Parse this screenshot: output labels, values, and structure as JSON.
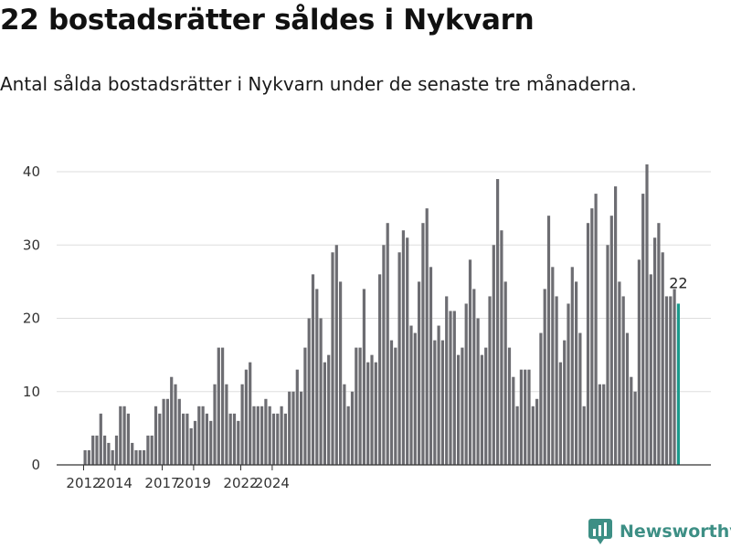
{
  "title": "22 bostadsrätter såldes i Nykvarn",
  "subtitle": "Antal sålda bostadsrätter i Nykvarn under de senaste tre månaderna.",
  "brand": {
    "name": "Newsworthy",
    "color": "#3d8f85",
    "icon": "newsworthy-logo-icon"
  },
  "colors": {
    "bar": "#6d6d72",
    "highlight": "#1a9a8c",
    "grid": "#dddddd",
    "axis": "#333333"
  },
  "chart_data": {
    "type": "bar",
    "title": "22 bostadsrätter såldes i Nykvarn",
    "xlabel": "",
    "ylabel": "",
    "ylim": [
      0,
      41
    ],
    "yticks": [
      0,
      10,
      20,
      30,
      40
    ],
    "x_start": 2012,
    "x_step": 0.25,
    "xticks": [
      {
        "label": "2012",
        "value": 2012
      },
      {
        "label": "2014",
        "value": 2014
      },
      {
        "label": "2017",
        "value": 2017
      },
      {
        "label": "2019",
        "value": 2019
      },
      {
        "label": "2022",
        "value": 2022
      },
      {
        "label": "2024",
        "value": 2024
      }
    ],
    "values": [
      2,
      2,
      4,
      4,
      7,
      4,
      3,
      2,
      4,
      8,
      8,
      7,
      3,
      2,
      2,
      2,
      4,
      4,
      8,
      7,
      9,
      9,
      12,
      11,
      9,
      7,
      7,
      5,
      6,
      8,
      8,
      7,
      6,
      11,
      16,
      16,
      11,
      7,
      7,
      6,
      11,
      13,
      14,
      8,
      8,
      8,
      9,
      8,
      7,
      7,
      8,
      7,
      10,
      10,
      13,
      10,
      16,
      20,
      26,
      24,
      20,
      14,
      15,
      29,
      30,
      25,
      11,
      8,
      10,
      16,
      16,
      24,
      14,
      15,
      14,
      26,
      30,
      33,
      17,
      16,
      29,
      32,
      31,
      19,
      18,
      25,
      33,
      35,
      27,
      17,
      19,
      17,
      23,
      21,
      21,
      15,
      16,
      22,
      28,
      24,
      20,
      15,
      16,
      23,
      30,
      39,
      32,
      25,
      16,
      12,
      8,
      13,
      13,
      13,
      8,
      9,
      18,
      24,
      34,
      27,
      23,
      14,
      17,
      22,
      27,
      25,
      18,
      8,
      33,
      35,
      37,
      11,
      11,
      30,
      34,
      38,
      25,
      23,
      18,
      12,
      10,
      28,
      37,
      41,
      26,
      31,
      33,
      29,
      23,
      23,
      24,
      22
    ],
    "highlight_index": 151,
    "highlight_label": "22"
  }
}
